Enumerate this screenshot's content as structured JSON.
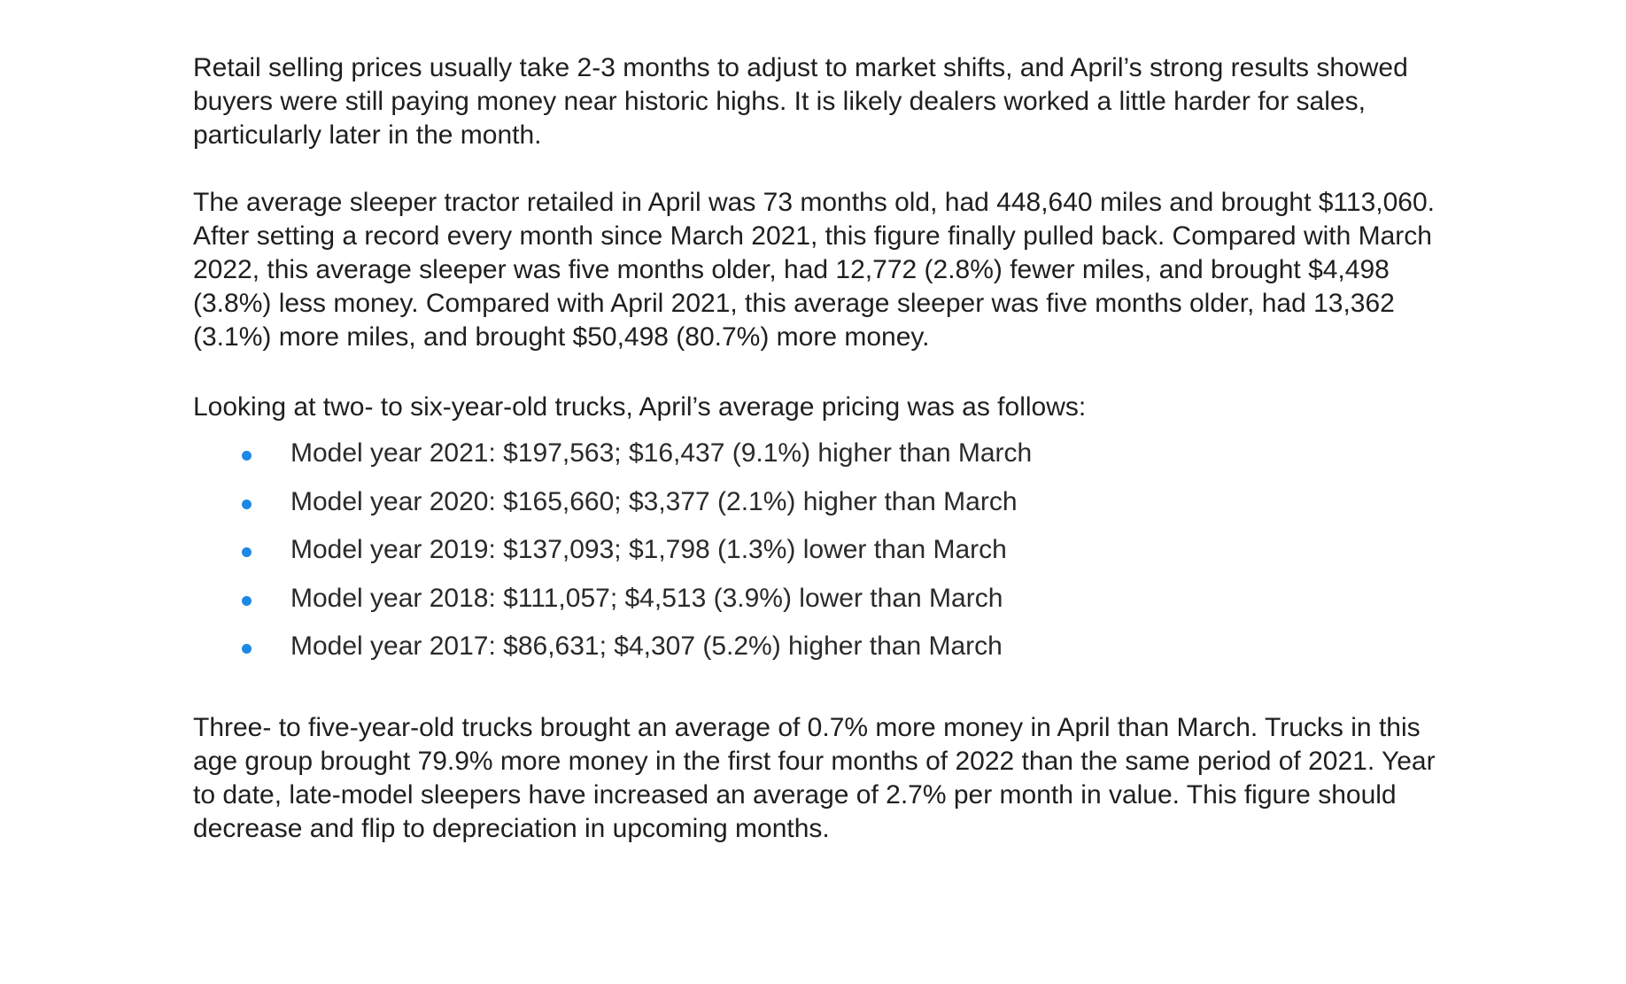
{
  "article": {
    "paragraph_1": "Retail selling prices usually take 2-3 months to adjust to market shifts, and April’s strong results showed buyers were still paying money near historic highs. It is likely dealers worked a little harder for sales, particularly later in the month.",
    "paragraph_2": "The average sleeper tractor retailed in April was 73 months old, had 448,640 miles and brought $113,060. After setting a record every month since March 2021, this figure finally pulled back. Compared with March 2022, this average sleeper was five months older, had 12,772 (2.8%) fewer miles, and brought $4,498 (3.8%) less money. Compared with April 2021, this average sleeper was five months older, had 13,362 (3.1%) more miles, and brought $50,498 (80.7%) more money.",
    "paragraph_3": "Looking at two- to six-year-old trucks, April’s average pricing was as follows:",
    "bullets": [
      "Model year 2021: $197,563; $16,437 (9.1%) higher than March",
      "Model year 2020: $165,660; $3,377 (2.1%) higher than March",
      "Model year 2019: $137,093; $1,798 (1.3%) lower than March",
      "Model year 2018: $111,057; $4,513 (3.9%) lower than March",
      "Model year 2017: $86,631; $4,307 (5.2%) higher than March"
    ],
    "paragraph_4": "Three- to five-year-old trucks brought an average of 0.7% more money in April than March. Trucks in this age group brought 79.9% more money in the first four months of 2022 than the same period of 2021. Year to date, late-model sleepers have increased an average of 2.7% per month in value. This figure should decrease and flip to depreciation in upcoming months."
  },
  "colors": {
    "text": "#1f1f1f",
    "bullet": "#1e88e5",
    "background": "#ffffff"
  }
}
